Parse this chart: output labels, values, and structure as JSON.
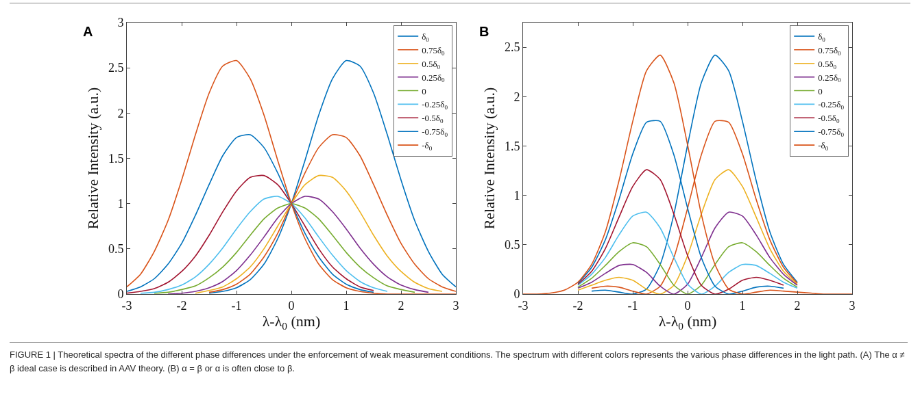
{
  "chart_data": [
    {
      "type": "line",
      "xlabel": "λ-λ$_{0}$ (nm)",
      "ylabel": "Relative Intensity (a.u.)",
      "annotations": [
        "A",
        "FIGURE 1 | Theoretical spectra of the different phase differences under the enforcement of weak measurement conditions. The spectrum with different colors represents the various phase differences in the light path. (A) The α ≠ β ideal case is described in AAV theory. (B) α = β or α is often close to β."
      ],
      "x": [
        -3,
        -2.75,
        -2.5,
        -2.25,
        -2,
        -1.75,
        -1.5,
        -1.25,
        -1,
        -0.75,
        -0.5,
        -0.25,
        0,
        0.25,
        0.5,
        0.75,
        1,
        1.25,
        1.5,
        1.75,
        2,
        2.25,
        2.5,
        2.75,
        3
      ],
      "xlim": [
        -3,
        3
      ],
      "xticks": [
        -3,
        -2,
        -1,
        0,
        1,
        2,
        3
      ],
      "ylim": [
        0,
        3
      ],
      "yticks": [
        0,
        0.5,
        1,
        1.5,
        2,
        2.5,
        3
      ],
      "grid": false,
      "legend": "top right",
      "line_style": "solid",
      "marker": "none",
      "series": [
        {
          "name": "δ$_{0}$",
          "color": "#0072bd",
          "values": [
            null,
            null,
            null,
            null,
            null,
            null,
            0.01,
            0.03,
            0.07,
            0.16,
            0.33,
            0.61,
            1,
            1.48,
            1.98,
            2.38,
            2.58,
            2.52,
            2.22,
            1.76,
            1.26,
            0.81,
            0.47,
            0.22,
            0.08
          ]
        },
        {
          "name": "0.75δ$_{0}$",
          "color": "#d95319",
          "values": [
            null,
            null,
            null,
            null,
            null,
            null,
            0.02,
            0.05,
            0.11,
            0.22,
            0.41,
            0.67,
            1,
            1.34,
            1.62,
            1.76,
            1.73,
            1.53,
            1.21,
            0.87,
            0.56,
            0.33,
            0.17,
            0.08,
            0.03
          ]
        },
        {
          "name": "0.5δ$_{0}$",
          "color": "#edb120",
          "values": [
            null,
            null,
            null,
            null,
            null,
            0.01,
            0.04,
            0.08,
            0.17,
            0.3,
            0.5,
            0.75,
            1,
            1.21,
            1.31,
            1.29,
            1.14,
            0.91,
            0.65,
            0.42,
            0.25,
            0.13,
            0.06,
            0.03,
            null
          ]
        },
        {
          "name": "0.25δ$_{0}$",
          "color": "#7e2f8e",
          "values": [
            null,
            null,
            null,
            0,
            0.01,
            0.03,
            0.07,
            0.14,
            0.26,
            0.43,
            0.63,
            0.84,
            1,
            1.08,
            1.05,
            0.91,
            0.72,
            0.51,
            0.33,
            0.19,
            0.1,
            0.05,
            0.02,
            null,
            null
          ]
        },
        {
          "name": "0",
          "color": "#77ac30",
          "values": [
            null,
            null,
            0.01,
            0.02,
            0.05,
            0.09,
            0.18,
            0.3,
            0.46,
            0.65,
            0.83,
            0.95,
            1,
            0.95,
            0.83,
            0.65,
            0.46,
            0.3,
            0.18,
            0.09,
            0.05,
            0.02,
            null,
            null,
            null
          ]
        },
        {
          "name": "-0.25δ$_{0}$",
          "color": "#4dbeee",
          "values": [
            null,
            0.01,
            0.02,
            0.05,
            0.1,
            0.19,
            0.33,
            0.51,
            0.72,
            0.91,
            1.05,
            1.08,
            1,
            0.84,
            0.63,
            0.43,
            0.26,
            0.14,
            0.07,
            0.03,
            null,
            null,
            null,
            null,
            null
          ]
        },
        {
          "name": "-0.5δ$_{0}$",
          "color": "#a2142f",
          "values": [
            0.01,
            0.03,
            0.06,
            0.13,
            0.25,
            0.42,
            0.65,
            0.91,
            1.14,
            1.29,
            1.31,
            1.21,
            1,
            0.75,
            0.5,
            0.3,
            0.17,
            0.08,
            0.04,
            null,
            null,
            null,
            null,
            null,
            null
          ]
        },
        {
          "name": "-0.75δ$_{0}$",
          "color": "#0072bd",
          "values": [
            0.03,
            0.08,
            0.17,
            0.33,
            0.56,
            0.87,
            1.21,
            1.53,
            1.73,
            1.76,
            1.62,
            1.34,
            1,
            0.67,
            0.41,
            0.22,
            0.11,
            0.05,
            0.02,
            null,
            null,
            null,
            null,
            null,
            null
          ]
        },
        {
          "name": "-δ$_{0}$",
          "color": "#d95319",
          "values": [
            0.08,
            0.22,
            0.47,
            0.81,
            1.26,
            1.76,
            2.22,
            2.52,
            2.58,
            2.38,
            1.98,
            1.48,
            1,
            0.61,
            0.33,
            0.16,
            0.07,
            0.03,
            0.01,
            0,
            0,
            0,
            0,
            0,
            0
          ]
        }
      ]
    },
    {
      "type": "line",
      "xlabel": "λ-λ$_{0}$ (nm)",
      "ylabel": "Relative Intensity (a.u.)",
      "annotations": [
        "B"
      ],
      "x": [
        -3,
        -2.75,
        -2.5,
        -2.25,
        -2,
        -1.75,
        -1.5,
        -1.25,
        -1,
        -0.75,
        -0.5,
        -0.25,
        0,
        0.25,
        0.5,
        0.75,
        1,
        1.25,
        1.5,
        1.75,
        2,
        2.25,
        2.5,
        2.75,
        3
      ],
      "xlim": [
        -3,
        3
      ],
      "xticks": [
        -3,
        -2,
        -1,
        0,
        1,
        2,
        3
      ],
      "ylim": [
        0,
        2.75
      ],
      "yticks": [
        0,
        0.5,
        1,
        1.5,
        2,
        2.5
      ],
      "grid": false,
      "legend": "top right",
      "line_style": "solid",
      "marker": "none",
      "series": [
        {
          "name": "δ$_{0}$",
          "color": "#0072bd",
          "values": [
            null,
            null,
            null,
            null,
            null,
            0.03,
            0.04,
            0.02,
            0,
            0.05,
            0.3,
            0.81,
            1.51,
            2.14,
            2.42,
            2.26,
            1.75,
            1.15,
            0.63,
            0.3,
            0.12,
            null,
            null,
            null,
            null
          ]
        },
        {
          "name": "0.75δ$_{0}$",
          "color": "#d95319",
          "values": [
            null,
            null,
            null,
            null,
            null,
            0.06,
            0.08,
            0.07,
            0.03,
            0,
            0.08,
            0.37,
            0.87,
            1.41,
            1.75,
            1.74,
            1.42,
            0.96,
            0.55,
            0.27,
            0.11,
            null,
            null,
            null,
            null
          ]
        },
        {
          "name": "0.5δ$_{0}$",
          "color": "#edb120",
          "values": [
            null,
            null,
            null,
            null,
            0.04,
            0.09,
            0.14,
            0.17,
            0.14,
            0.05,
            0,
            0.09,
            0.39,
            0.81,
            1.16,
            1.26,
            1.09,
            0.78,
            0.46,
            0.23,
            0.1,
            null,
            null,
            null,
            null
          ]
        },
        {
          "name": "0.25δ$_{0}$",
          "color": "#7e2f8e",
          "values": [
            null,
            null,
            null,
            null,
            0.06,
            0.12,
            0.21,
            0.29,
            0.3,
            0.22,
            0.08,
            0,
            0.1,
            0.37,
            0.67,
            0.83,
            0.79,
            0.6,
            0.37,
            0.2,
            0.09,
            null,
            null,
            null,
            null
          ]
        },
        {
          "name": "0",
          "color": "#77ac30",
          "values": [
            null,
            null,
            null,
            null,
            0.07,
            0.16,
            0.29,
            0.43,
            0.52,
            0.48,
            0.3,
            0.09,
            0,
            0.09,
            0.3,
            0.48,
            0.52,
            0.43,
            0.29,
            0.16,
            0.07,
            null,
            null,
            null,
            null
          ]
        },
        {
          "name": "-0.25δ$_{0}$",
          "color": "#4dbeee",
          "values": [
            null,
            null,
            null,
            null,
            0.09,
            0.2,
            0.37,
            0.6,
            0.79,
            0.83,
            0.67,
            0.37,
            0.1,
            0,
            0.08,
            0.22,
            0.3,
            0.29,
            0.21,
            0.12,
            0.06,
            null,
            null,
            null,
            null
          ]
        },
        {
          "name": "-0.5δ$_{0}$",
          "color": "#a2142f",
          "values": [
            null,
            null,
            null,
            null,
            0.1,
            0.23,
            0.46,
            0.78,
            1.09,
            1.26,
            1.16,
            0.81,
            0.39,
            0.09,
            0,
            0.05,
            0.14,
            0.17,
            0.14,
            0.09,
            null,
            null,
            null,
            null,
            null
          ]
        },
        {
          "name": "-0.75δ$_{0}$",
          "color": "#0072bd",
          "values": [
            null,
            null,
            null,
            null,
            0.11,
            0.27,
            0.55,
            0.96,
            1.42,
            1.74,
            1.75,
            1.41,
            0.87,
            0.37,
            0.08,
            0,
            0.03,
            0.07,
            0.08,
            0.06,
            null,
            null,
            null,
            null,
            null
          ]
        },
        {
          "name": "-δ$_{0}$",
          "color": "#d95319",
          "values": [
            0,
            0,
            0.01,
            0.04,
            0.12,
            0.3,
            0.63,
            1.15,
            1.75,
            2.26,
            2.42,
            2.14,
            1.51,
            0.81,
            0.3,
            0.05,
            0,
            0.02,
            0.04,
            0.03,
            0.02,
            0.01,
            0,
            0,
            0
          ]
        }
      ]
    }
  ]
}
